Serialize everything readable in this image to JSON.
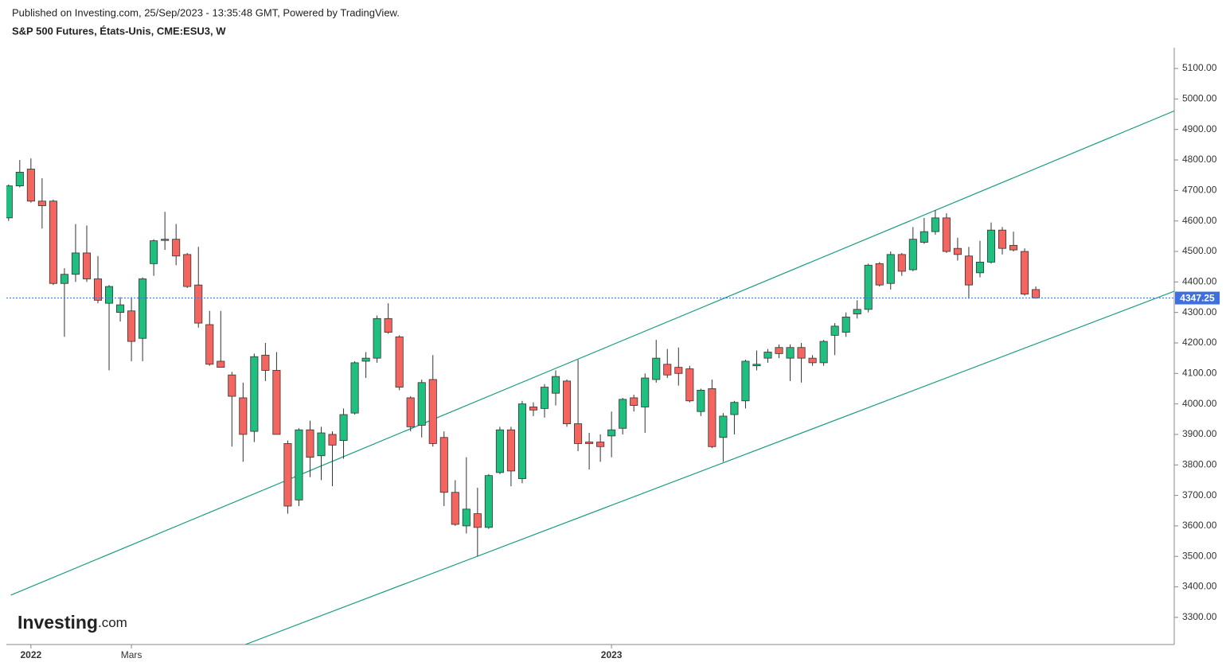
{
  "header": {
    "published": "Published on Investing.com, 25/Sep/2023 - 13:35:48 GMT, Powered by TradingView.",
    "symbol": "S&P 500 Futures, États-Unis, CME:ESU3, W"
  },
  "logo": {
    "name": "Investing",
    "suffix": ".com"
  },
  "chart_data": {
    "type": "candlestick",
    "categories": [
      null,
      null,
      "2022",
      null,
      null,
      null,
      null,
      null,
      null,
      null,
      null,
      "Mars",
      null,
      null,
      null,
      null,
      null,
      null,
      null,
      null,
      null,
      null,
      null,
      null,
      null,
      null,
      null,
      null,
      null,
      null,
      null,
      null,
      null,
      null,
      null,
      null,
      null,
      null,
      null,
      null,
      null,
      null,
      null,
      null,
      null,
      null,
      null,
      null,
      null,
      null,
      null,
      null,
      null,
      null,
      "2023",
      null,
      null,
      null,
      null,
      null,
      null,
      null,
      null,
      null,
      null,
      null,
      null,
      null,
      null,
      null,
      null,
      null,
      null,
      null,
      null,
      null,
      null,
      null,
      null,
      null,
      null,
      null,
      null,
      null,
      null,
      null,
      null,
      null,
      null,
      null,
      null,
      null,
      null
    ],
    "open": [
      4610,
      4715,
      4770,
      4665,
      4665,
      4395,
      4425,
      4495,
      4410,
      4330,
      4300,
      4305,
      4215,
      4460,
      4540,
      4540,
      4490,
      4390,
      4260,
      4140,
      4095,
      4020,
      3910,
      4160,
      4110,
      3870,
      3685,
      3915,
      3830,
      3900,
      3880,
      3970,
      4140,
      4150,
      4280,
      4220,
      4020,
      3930,
      4080,
      3890,
      3710,
      3600,
      3640,
      3595,
      3775,
      3915,
      3755,
      3990,
      3985,
      4035,
      4075,
      3935,
      3875,
      3875,
      3895,
      3920,
      4020,
      3990,
      4080,
      4130,
      4120,
      4115,
      3975,
      4050,
      3890,
      3965,
      4010,
      4125,
      4150,
      4185,
      4150,
      4185,
      4150,
      4135,
      4225,
      4235,
      4295,
      4310,
      4460,
      4395,
      4490,
      4440,
      4530,
      4565,
      4610,
      4510,
      4485,
      4430,
      4465,
      4570,
      4520,
      4500,
      4375
    ],
    "high": [
      4720,
      4800,
      4805,
      4740,
      4670,
      4445,
      4590,
      4585,
      4485,
      4390,
      4350,
      4350,
      4415,
      4540,
      4630,
      4590,
      4495,
      4515,
      4305,
      4305,
      4105,
      4070,
      4165,
      4200,
      4170,
      3880,
      3920,
      3945,
      3925,
      3910,
      3985,
      4140,
      4170,
      4290,
      4330,
      4225,
      4025,
      4080,
      4160,
      3910,
      3750,
      3825,
      3725,
      3770,
      3925,
      3925,
      4010,
      4005,
      4065,
      4110,
      4080,
      4145,
      3905,
      3900,
      3975,
      4020,
      4030,
      4100,
      4210,
      4180,
      4185,
      4125,
      4050,
      4080,
      3970,
      4010,
      4145,
      4175,
      4180,
      4195,
      4195,
      4200,
      4160,
      4210,
      4265,
      4300,
      4340,
      4460,
      4465,
      4500,
      4495,
      4580,
      4610,
      4635,
      4625,
      4545,
      4515,
      4535,
      4595,
      4580,
      4565,
      4510,
      4385
    ],
    "low": [
      4600,
      4710,
      4660,
      4575,
      4390,
      4220,
      4400,
      4400,
      4330,
      4110,
      4270,
      4140,
      4140,
      4420,
      4505,
      4455,
      4380,
      4250,
      4125,
      4120,
      3860,
      3810,
      3875,
      4075,
      3900,
      3640,
      3665,
      3760,
      3750,
      3730,
      3820,
      3965,
      4085,
      4135,
      4230,
      4045,
      3910,
      3890,
      3860,
      3665,
      3600,
      3575,
      3500,
      3590,
      3770,
      3730,
      3740,
      3960,
      3955,
      3995,
      3925,
      3845,
      3785,
      3810,
      3825,
      3900,
      3975,
      3905,
      4070,
      4085,
      4060,
      4005,
      3960,
      3855,
      3810,
      3900,
      3985,
      4110,
      4135,
      4150,
      4075,
      4070,
      4125,
      4125,
      4160,
      4220,
      4280,
      4300,
      4385,
      4375,
      4420,
      4435,
      4525,
      4555,
      4495,
      4470,
      4345,
      4415,
      4460,
      4490,
      4500,
      4355,
      4345
    ],
    "close": [
      4715,
      4760,
      4665,
      4650,
      4395,
      4425,
      4495,
      4410,
      4340,
      4385,
      4325,
      4205,
      4410,
      4535,
      4540,
      4485,
      4385,
      4265,
      4130,
      4120,
      4025,
      3900,
      4155,
      4110,
      3900,
      3665,
      3915,
      3825,
      3905,
      3865,
      3965,
      4135,
      4150,
      4280,
      4235,
      4055,
      3925,
      4070,
      3870,
      3710,
      3605,
      3655,
      3595,
      3765,
      3915,
      3780,
      4000,
      3980,
      4055,
      4090,
      3935,
      3870,
      3870,
      3860,
      3915,
      4015,
      3995,
      4085,
      4150,
      4095,
      4100,
      4010,
      4045,
      3860,
      3960,
      4005,
      4140,
      4130,
      4170,
      4165,
      4185,
      4150,
      4135,
      4205,
      4255,
      4285,
      4310,
      4455,
      4390,
      4490,
      4435,
      4540,
      4565,
      4610,
      4500,
      4490,
      4390,
      4465,
      4570,
      4510,
      4505,
      4360,
      4347.25
    ],
    "up_color": "#1fc07f",
    "down_color": "#f4655f",
    "xlim": [
      -0.2,
      104.4
    ],
    "ylim": [
      3211,
      5168
    ],
    "yticks": [
      {
        "value": 3300,
        "label": "3300.00"
      },
      {
        "value": 3400,
        "label": "3400.00"
      },
      {
        "value": 3500,
        "label": "3500.00"
      },
      {
        "value": 3600,
        "label": "3600.00"
      },
      {
        "value": 3700,
        "label": "3700.00"
      },
      {
        "value": 3800,
        "label": "3800.00"
      },
      {
        "value": 3900,
        "label": "3900.00"
      },
      {
        "value": 4000,
        "label": "4000.00"
      },
      {
        "value": 4100,
        "label": "4100.00"
      },
      {
        "value": 4200,
        "label": "4200.00"
      },
      {
        "value": 4300,
        "label": "4300.00"
      },
      {
        "value": 4400,
        "label": "4400.00"
      },
      {
        "value": 4500,
        "label": "4500.00"
      },
      {
        "value": 4600,
        "label": "4600.00"
      },
      {
        "value": 4700,
        "label": "4700.00"
      },
      {
        "value": 4800,
        "label": "4800.00"
      },
      {
        "value": 4900,
        "label": "4900.00"
      },
      {
        "value": 5000,
        "label": "5000.00"
      },
      {
        "value": 5100,
        "label": "5100.00"
      }
    ],
    "last_price": 4347.25,
    "last_price_color": "#3d6fe0",
    "trendlines": [
      {
        "color": "#1a9c85",
        "points": [
          [
            0.2,
            3373
          ],
          [
            104.8,
            4967
          ]
        ]
      },
      {
        "color": "#1a9c85",
        "points": [
          [
            21.2,
            3211
          ],
          [
            104.8,
            4375
          ]
        ]
      }
    ],
    "grid": false
  }
}
